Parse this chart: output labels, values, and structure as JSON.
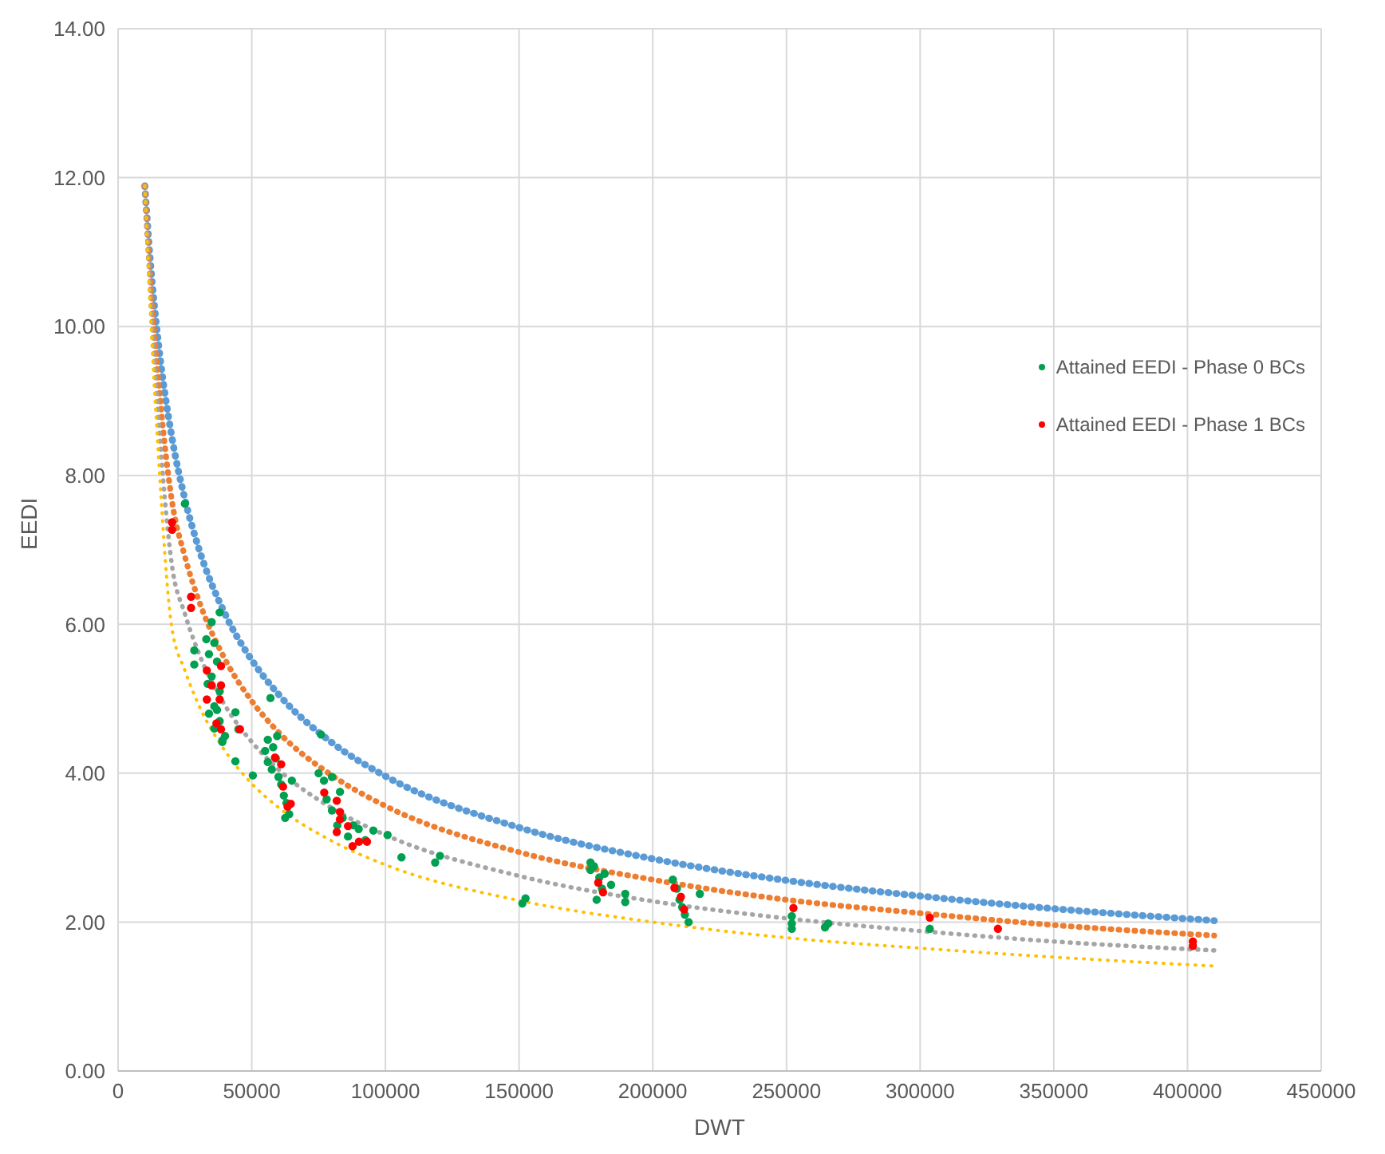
{
  "chart_data": {
    "type": "scatter",
    "xlabel": "DWT",
    "ylabel": "EEDI",
    "xlim": [
      0,
      450000
    ],
    "xticks": [
      0,
      50000,
      100000,
      150000,
      200000,
      250000,
      300000,
      350000,
      400000,
      450000
    ],
    "ylim": [
      0,
      14
    ],
    "yticks": [
      {
        "value": 0,
        "label": "0.00"
      },
      {
        "value": 2,
        "label": "2.00"
      },
      {
        "value": 4,
        "label": "4.00"
      },
      {
        "value": 6,
        "label": "6.00"
      },
      {
        "value": 8,
        "label": "8.00"
      },
      {
        "value": 10,
        "label": "10.00"
      },
      {
        "value": 12,
        "label": "12.00"
      },
      {
        "value": 14,
        "label": "14.00"
      }
    ],
    "grid": true,
    "legend": "right",
    "marker": "circle",
    "series": [
      {
        "type": "line",
        "color": "#5b9bd5",
        "line_style": "dotted",
        "marker": "none",
        "x": [
          10000,
          12000,
          15000,
          20000,
          25000,
          30000,
          40000,
          50000,
          60000,
          80000,
          100000,
          150000,
          200000,
          250000,
          300000,
          350000,
          410000
        ],
        "values": [
          11.89,
          10.9,
          9.8,
          8.54,
          7.68,
          7.04,
          6.14,
          5.52,
          5.06,
          4.41,
          3.96,
          3.27,
          2.85,
          2.56,
          2.35,
          2.18,
          2.02
        ]
      },
      {
        "type": "line",
        "color": "#ed7d31",
        "line_style": "dotted",
        "marker": "none",
        "x": [
          10000,
          12000,
          15000,
          20000,
          25000,
          30000,
          40000,
          50000,
          60000,
          80000,
          100000,
          150000,
          200000,
          250000,
          300000,
          350000,
          410000
        ],
        "values": [
          11.89,
          10.68,
          9.31,
          7.69,
          6.91,
          6.34,
          5.53,
          4.97,
          4.55,
          3.97,
          3.56,
          2.94,
          2.57,
          2.3,
          2.12,
          1.96,
          1.82
        ]
      },
      {
        "type": "line",
        "color": "#a5a5a5",
        "line_style": "dotted",
        "marker": "none",
        "x": [
          10000,
          12000,
          15000,
          20000,
          25000,
          30000,
          40000,
          50000,
          60000,
          80000,
          100000,
          150000,
          200000,
          250000,
          300000,
          350000,
          410000
        ],
        "values": [
          11.89,
          10.46,
          8.82,
          6.83,
          6.14,
          5.63,
          4.91,
          4.42,
          4.05,
          3.53,
          3.17,
          2.62,
          2.28,
          2.05,
          1.88,
          1.74,
          1.62
        ]
      },
      {
        "type": "line",
        "color": "#ffc000",
        "line_style": "dotted",
        "marker": "none",
        "x": [
          10000,
          12000,
          15000,
          20000,
          25000,
          30000,
          40000,
          50000,
          60000,
          80000,
          100000,
          150000,
          200000,
          250000,
          300000,
          350000,
          410000
        ],
        "values": [
          11.89,
          10.25,
          8.33,
          5.98,
          5.38,
          4.93,
          4.3,
          3.86,
          3.54,
          3.09,
          2.77,
          2.29,
          2.0,
          1.79,
          1.65,
          1.53,
          1.41
        ]
      },
      {
        "name": "Attained EEDI - Phase 0 BCs",
        "color": "#00a050",
        "x": [
          25000,
          28500,
          28500,
          38000,
          35000,
          33000,
          36000,
          34000,
          37000,
          35000,
          38000,
          33500,
          36000,
          34000,
          37000,
          38000,
          39000,
          36000,
          40000,
          39000,
          43900,
          45000,
          43900,
          50400,
          57000,
          75900,
          55000,
          56000,
          57500,
          58000,
          59000,
          60000,
          61000,
          62000,
          63000,
          64000,
          65000,
          56000,
          59500,
          62500,
          75000,
          77000,
          80000,
          83000,
          78000,
          80000,
          82000,
          84000,
          86000,
          88000,
          90000,
          92500,
          95500,
          100800,
          106000,
          118600,
          120400,
          176700,
          151200,
          152400,
          176700,
          178000,
          180000,
          182000,
          184400,
          179000,
          181000,
          189700,
          189700,
          207500,
          209000,
          210000,
          211000,
          212000,
          213400,
          217600,
          252000,
          252000,
          252000,
          264400,
          265600,
          303600
        ],
        "values": [
          7.62,
          5.65,
          5.46,
          6.16,
          6.03,
          5.8,
          5.75,
          5.6,
          5.5,
          5.3,
          5.1,
          5.2,
          4.9,
          4.8,
          4.85,
          4.7,
          4.44,
          4.6,
          4.5,
          4.42,
          4.82,
          4.59,
          4.16,
          3.97,
          5.01,
          4.52,
          4.3,
          4.15,
          4.05,
          4.35,
          4.2,
          3.95,
          3.85,
          3.7,
          3.6,
          3.45,
          3.9,
          4.45,
          4.5,
          3.4,
          4.0,
          3.9,
          3.95,
          3.75,
          3.65,
          3.5,
          3.3,
          3.4,
          3.15,
          3.3,
          3.25,
          3.1,
          3.23,
          3.17,
          2.87,
          2.8,
          2.89,
          2.8,
          2.25,
          2.32,
          2.7,
          2.75,
          2.6,
          2.65,
          2.5,
          2.3,
          2.45,
          2.38,
          2.27,
          2.57,
          2.45,
          2.3,
          2.2,
          2.1,
          2.0,
          2.38,
          2.08,
          1.98,
          1.91,
          1.93,
          1.98,
          1.91
        ]
      },
      {
        "name": "Attained EEDI - Phase 1 BCs",
        "color": "#ff0000",
        "x": [
          20200,
          20200,
          27300,
          27300,
          33200,
          35000,
          38500,
          38500,
          33200,
          38000,
          36800,
          38500,
          45600,
          58700,
          61000,
          61700,
          63400,
          64600,
          77100,
          81800,
          83000,
          83000,
          86000,
          81800,
          87700,
          90100,
          93100,
          179600,
          181400,
          208100,
          210500,
          211700,
          252600,
          303600,
          329100,
          402000,
          402000
        ],
        "values": [
          7.37,
          7.27,
          6.37,
          6.22,
          5.38,
          5.18,
          5.44,
          5.18,
          4.99,
          4.99,
          4.67,
          4.59,
          4.59,
          4.21,
          4.12,
          3.82,
          3.55,
          3.59,
          3.74,
          3.63,
          3.48,
          3.38,
          3.29,
          3.21,
          3.02,
          3.08,
          3.08,
          2.53,
          2.4,
          2.46,
          2.34,
          2.17,
          2.19,
          2.06,
          1.91,
          1.74,
          1.68
        ]
      }
    ]
  }
}
